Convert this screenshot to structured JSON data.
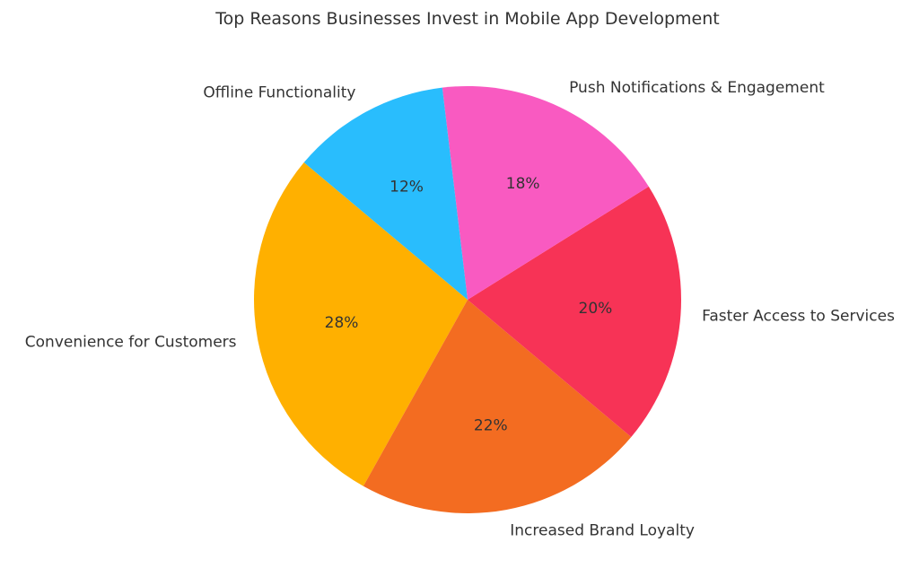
{
  "chart_data": {
    "type": "pie",
    "title": "Top Reasons Businesses Invest in Mobile App Development",
    "start_angle_deg": 140,
    "direction": "counterclockwise",
    "slices": [
      {
        "label": "Convenience for Customers",
        "value": 28,
        "pct_label": "28%",
        "color": "#FFB000"
      },
      {
        "label": "Increased Brand Loyalty",
        "value": 22,
        "pct_label": "22%",
        "color": "#F36C21"
      },
      {
        "label": "Faster Access to Services",
        "value": 20,
        "pct_label": "20%",
        "color": "#F73356"
      },
      {
        "label": "Push Notifications & Engagement",
        "value": 18,
        "pct_label": "18%",
        "color": "#F95AC1"
      },
      {
        "label": "Offline Functionality",
        "value": 12,
        "pct_label": "12%",
        "color": "#29BDFD"
      }
    ]
  }
}
